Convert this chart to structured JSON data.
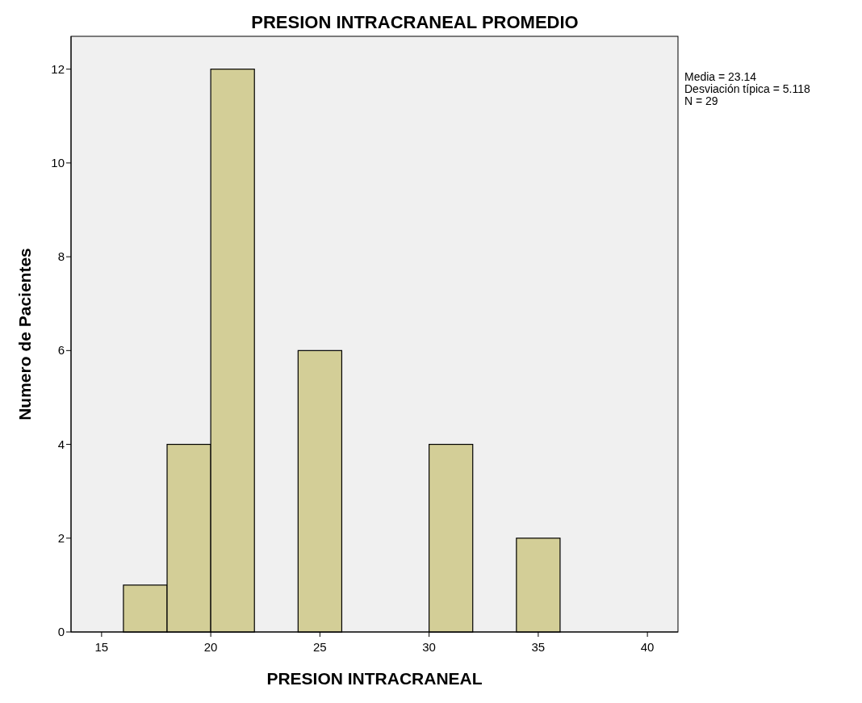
{
  "chart_data": {
    "type": "histogram",
    "title": "PRESION INTRACRANEAL PROMEDIO",
    "xlabel": "PRESION INTRACRANEAL",
    "ylabel": "Numero de Pacientes",
    "bins": [
      16,
      18,
      20,
      22,
      24,
      26,
      28,
      30,
      32,
      34,
      36
    ],
    "values": [
      1,
      4,
      12,
      0,
      6,
      0,
      0,
      4,
      0,
      2
    ],
    "color": "#d3ce97",
    "xlim": [
      13.6,
      41.4
    ],
    "xticks": [
      15,
      20,
      25,
      30,
      35,
      40
    ],
    "ylim": [
      0,
      12.7
    ],
    "yticks": [
      0,
      2,
      4,
      6,
      8,
      10,
      12
    ],
    "grid": false,
    "annotations": [
      "Media = 23.14",
      "Desviación típica = 5.118",
      "N = 29"
    ]
  }
}
